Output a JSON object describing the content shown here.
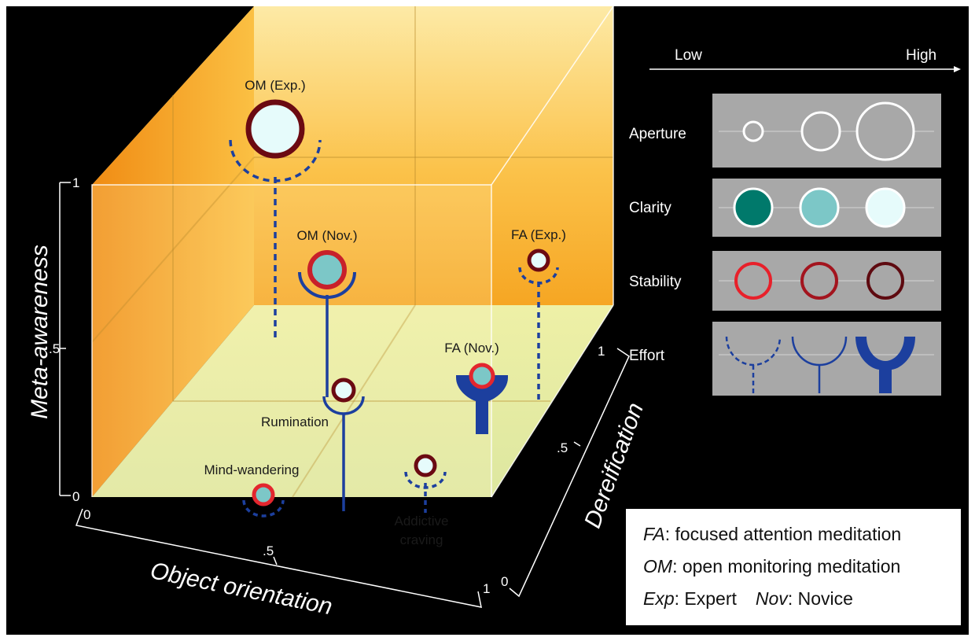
{
  "axes": {
    "x_title": "Object orientation",
    "y_title": "Meta-awareness",
    "z_title": "Dereification",
    "y_ticks": [
      "0",
      ".5",
      "1"
    ],
    "x_ticks": [
      "0",
      ".5",
      "1"
    ],
    "z_ticks": [
      "0",
      ".5",
      "1"
    ]
  },
  "points": [
    {
      "label": "OM (Exp.)",
      "aperture": "high",
      "clarity": "high",
      "stability": "high",
      "effort": "low"
    },
    {
      "label": "OM (Nov.)",
      "aperture": "medium",
      "clarity": "medium",
      "stability": "low",
      "effort": "medium"
    },
    {
      "label": "FA (Exp.)",
      "aperture": "low",
      "clarity": "high",
      "stability": "high",
      "effort": "low"
    },
    {
      "label": "FA (Nov.)",
      "aperture": "low",
      "clarity": "medium",
      "stability": "low",
      "effort": "high"
    },
    {
      "label": "Rumination",
      "aperture": "low",
      "clarity": "high",
      "stability": "high",
      "effort": "medium"
    },
    {
      "label": "Mind-wandering",
      "aperture": "low",
      "clarity": "medium",
      "stability": "low",
      "effort": "low"
    },
    {
      "label": "Addictive craving",
      "label_lines": [
        "Addictive",
        "craving"
      ],
      "aperture": "low",
      "clarity": "high",
      "stability": "high",
      "effort": "low"
    }
  ],
  "legend": {
    "scale_low": "Low",
    "scale_high": "High",
    "rows": [
      "Aperture",
      "Clarity",
      "Stability",
      "Effort"
    ],
    "clarity_colors": [
      "#00796b",
      "#7cc7c7",
      "#e6fbfb"
    ],
    "stability_colors": [
      "#e8202a",
      "#a3141e",
      "#5e0a10"
    ]
  },
  "definitions": [
    {
      "abbr": "FA",
      "text": ": focused attention meditation"
    },
    {
      "abbr": "OM",
      "text": ": open monitoring meditation"
    },
    {
      "abbr": "Exp",
      "text": ": Expert",
      "abbr2": "Nov",
      "text2": ": Novice"
    }
  ],
  "colors": {
    "background": "#000000",
    "effort_blue": "#1c3f9e",
    "ring_dark": "#6b0a12",
    "ring_red": "#e3262e"
  }
}
